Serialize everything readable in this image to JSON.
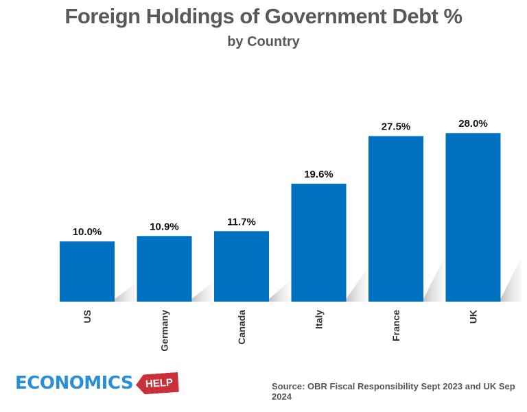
{
  "chart_data": {
    "type": "bar",
    "title": "Foreign Holdings of Government Debt %",
    "subtitle": "by Country",
    "categories": [
      "US",
      "Germany",
      "Canada",
      "Italy",
      "France",
      "UK"
    ],
    "values": [
      10.0,
      10.9,
      11.7,
      19.6,
      27.5,
      28.0
    ],
    "data_labels": [
      "10.0%",
      "10.9%",
      "11.7%",
      "19.6%",
      "27.5%",
      "28.0%"
    ],
    "xlabel": "",
    "ylabel": "",
    "ylim": [
      0,
      28.5
    ],
    "grid": false,
    "bar_color": "#0070c0"
  },
  "footer": {
    "logo_text": "ECONOMICS",
    "logo_tag": "HELP",
    "source": "Source: OBR Fiscal Responsibility Sept 2023 and UK Sep 2024"
  }
}
